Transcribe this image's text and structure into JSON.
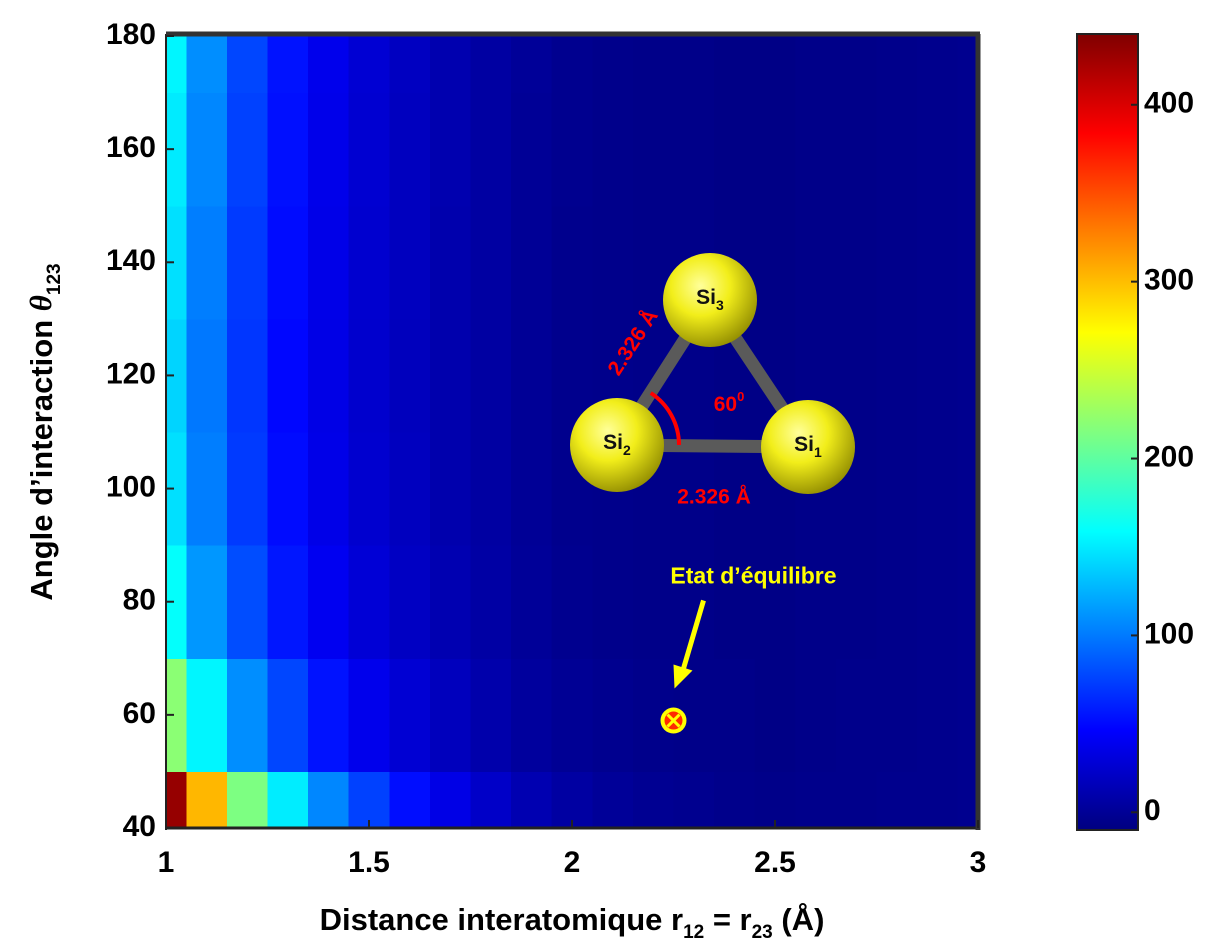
{
  "chart_data": {
    "type": "heatmap",
    "x": [
      1,
      1.1,
      1.2,
      1.3,
      1.4,
      1.5,
      1.6,
      1.7,
      1.8,
      1.9,
      2,
      2.1,
      2.2,
      2.3,
      2.4,
      2.5,
      2.6,
      2.7,
      2.8,
      2.9,
      3
    ],
    "y": [
      40,
      60,
      80,
      100,
      120,
      140,
      160,
      180
    ],
    "z": [
      [
        430,
        303,
        214,
        151,
        106,
        75,
        52,
        35,
        22,
        12,
        5,
        1,
        -2,
        -3,
        -5,
        -6,
        -5,
        -5,
        -4,
        -4,
        -3
      ],
      [
        220,
        155,
        109,
        77,
        54,
        38,
        27,
        17,
        9,
        3,
        -1,
        -3,
        -5,
        -6,
        -6,
        -7,
        -6,
        -5,
        -5,
        -4,
        -3
      ],
      [
        160,
        113,
        80,
        56,
        40,
        28,
        20,
        12,
        6,
        1,
        -3,
        -5,
        -6,
        -6,
        -7,
        -7,
        -6,
        -6,
        -5,
        -4,
        -3
      ],
      [
        145,
        102,
        72,
        51,
        36,
        25,
        18,
        10,
        5,
        0,
        -4,
        -5,
        -6,
        -6,
        -7,
        -7,
        -6,
        -6,
        -5,
        -4,
        -3
      ],
      [
        140,
        99,
        70,
        49,
        35,
        24,
        17,
        10,
        5,
        0,
        -4,
        -5,
        -6,
        -6,
        -7,
        -7,
        -6,
        -6,
        -5,
        -4,
        -3
      ],
      [
        145,
        102,
        72,
        51,
        36,
        25,
        18,
        10,
        5,
        0,
        -4,
        -5,
        -6,
        -6,
        -7,
        -7,
        -6,
        -6,
        -5,
        -4,
        -3
      ],
      [
        150,
        106,
        75,
        53,
        37,
        26,
        18,
        11,
        5,
        0,
        -3,
        -5,
        -6,
        -6,
        -7,
        -7,
        -6,
        -6,
        -5,
        -4,
        -3
      ],
      [
        155,
        109,
        77,
        54,
        38,
        27,
        19,
        11,
        5,
        1,
        -3,
        -5,
        -6,
        -6,
        -7,
        -7,
        -6,
        -6,
        -5,
        -4,
        -3
      ]
    ],
    "xlim": [
      1,
      3
    ],
    "ylim": [
      40,
      180
    ],
    "xticks": [
      1,
      1.5,
      2,
      2.5,
      3
    ],
    "yticks": [
      40,
      60,
      80,
      100,
      120,
      140,
      160,
      180
    ],
    "xlabel": [
      {
        "text": "Distance interatomique r"
      },
      {
        "text": "12",
        "sub": true
      },
      {
        "text": " = r"
      },
      {
        "text": "23",
        "sub": true
      },
      {
        "text": " (Å)"
      }
    ],
    "ylabel": [
      {
        "text": "Angle d’interaction "
      },
      {
        "text": "θ",
        "italic": true
      },
      {
        "text": "123",
        "sub": true
      }
    ],
    "colormap": "jet",
    "clim": [
      -10,
      440
    ],
    "colorbar_ticks": [
      0,
      100,
      200,
      300,
      400
    ],
    "annotation": {
      "text": "Etat d’équilibre",
      "x": 2.25,
      "y": 59,
      "color": "#ffff00"
    },
    "inset": {
      "atoms": [
        {
          "symbol": "Si",
          "index": "3"
        },
        {
          "symbol": "Si",
          "index": "2"
        },
        {
          "symbol": "Si",
          "index": "1"
        }
      ],
      "bond_labels": [
        "2.326 Å",
        "2.326 Å"
      ],
      "angle_label": {
        "text": "60",
        "sup": "0"
      },
      "label_color": "#ff0000"
    }
  }
}
